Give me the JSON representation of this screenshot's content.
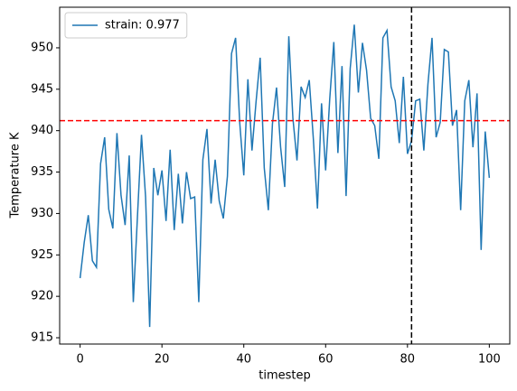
{
  "chart_data": {
    "type": "line",
    "xlabel": "timestep",
    "ylabel": "Temperature K",
    "x": [
      0,
      1,
      2,
      3,
      4,
      5,
      6,
      7,
      8,
      9,
      10,
      11,
      12,
      13,
      14,
      15,
      16,
      17,
      18,
      19,
      20,
      21,
      22,
      23,
      24,
      25,
      26,
      27,
      28,
      29,
      30,
      31,
      32,
      33,
      34,
      35,
      36,
      37,
      38,
      39,
      40,
      41,
      42,
      43,
      44,
      45,
      46,
      47,
      48,
      49,
      50,
      51,
      52,
      53,
      54,
      55,
      56,
      57,
      58,
      59,
      60,
      61,
      62,
      63,
      64,
      65,
      66,
      67,
      68,
      69,
      70,
      71,
      72,
      73,
      74,
      75,
      76,
      77,
      78,
      79,
      80,
      81,
      82,
      83,
      84,
      85,
      86,
      87,
      88,
      89,
      90,
      91,
      92,
      93,
      94,
      95,
      96,
      97,
      98,
      99,
      100
    ],
    "series": [
      {
        "name": "strain: 0.977",
        "color": "#1f77b4",
        "values": [
          922.2,
          926.5,
          929.8,
          924.3,
          923.5,
          936,
          939.2,
          930.5,
          928.2,
          939.7,
          932.2,
          928.6,
          937,
          919.3,
          929.5,
          939.5,
          932,
          916.3,
          935.5,
          932.2,
          935.2,
          929.1,
          937.7,
          928,
          934.8,
          928.8,
          935,
          931.8,
          932,
          919.3,
          936.5,
          940.2,
          931.2,
          936.5,
          931.5,
          929.4,
          934.5,
          949.3,
          951.2,
          941,
          934.6,
          946.2,
          937.6,
          943.5,
          948.8,
          935.5,
          930.4,
          940.8,
          945.2,
          938,
          933.2,
          951.4,
          941.5,
          936.4,
          945.3,
          944,
          946.1,
          939,
          930.6,
          943.3,
          935.2,
          943.8,
          950.7,
          937.3,
          947.8,
          932.1,
          947.5,
          952.8,
          944.6,
          950.6,
          947.3,
          941.5,
          940.6,
          936.6,
          951.2,
          952.1,
          945.3,
          943.6,
          938.5,
          946.5,
          937.2,
          938.8,
          943.6,
          943.8,
          937.6,
          945.6,
          951.2,
          939.2,
          941,
          949.8,
          949.5,
          940.6,
          942.5,
          930.4,
          943.6,
          946.1,
          938,
          944.5,
          925.6,
          939.9,
          934.3
        ]
      }
    ],
    "hlines": [
      {
        "value": 941.2,
        "color": "#ff0000"
      }
    ],
    "vlines": [
      {
        "value": 81,
        "color": "#000000"
      }
    ],
    "xlim": [
      -5,
      105
    ],
    "xticks": [
      0,
      20,
      40,
      60,
      80,
      100
    ],
    "ylim": [
      914.24,
      954.9
    ],
    "yticks": [
      915,
      920,
      925,
      930,
      935,
      940,
      945,
      950
    ],
    "legend": "upper left"
  }
}
